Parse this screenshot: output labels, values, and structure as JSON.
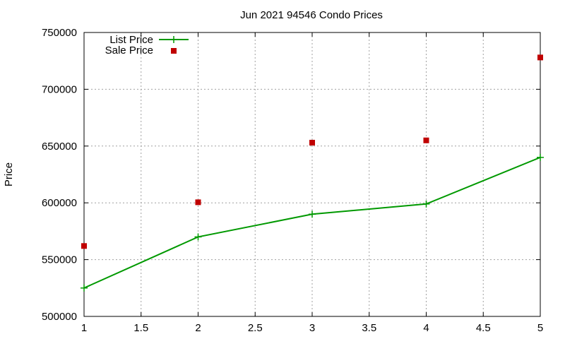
{
  "chart_data": {
    "type": "line",
    "title": "Jun 2021 94546 Condo Prices",
    "xlabel": "",
    "ylabel": "Price",
    "xlim": [
      1,
      5
    ],
    "ylim": [
      500000,
      750000
    ],
    "x_ticks": [
      "1",
      "1.5",
      "2",
      "2.5",
      "3",
      "3.5",
      "4",
      "4.5",
      "5"
    ],
    "y_ticks": [
      "500000",
      "550000",
      "600000",
      "650000",
      "700000",
      "750000"
    ],
    "grid": true,
    "legend_position": "top-left",
    "series": [
      {
        "name": "List Price",
        "style": "line-points",
        "color": "#009900",
        "marker": "plus",
        "x": [
          1,
          2,
          3,
          4,
          5
        ],
        "y": [
          525000,
          570000,
          590000,
          599000,
          640000
        ]
      },
      {
        "name": "Sale Price",
        "style": "points",
        "color": "#c00000",
        "marker": "square",
        "x": [
          1,
          2,
          3,
          4,
          5
        ],
        "y": [
          562000,
          600500,
          653000,
          655000,
          728000
        ]
      }
    ]
  }
}
